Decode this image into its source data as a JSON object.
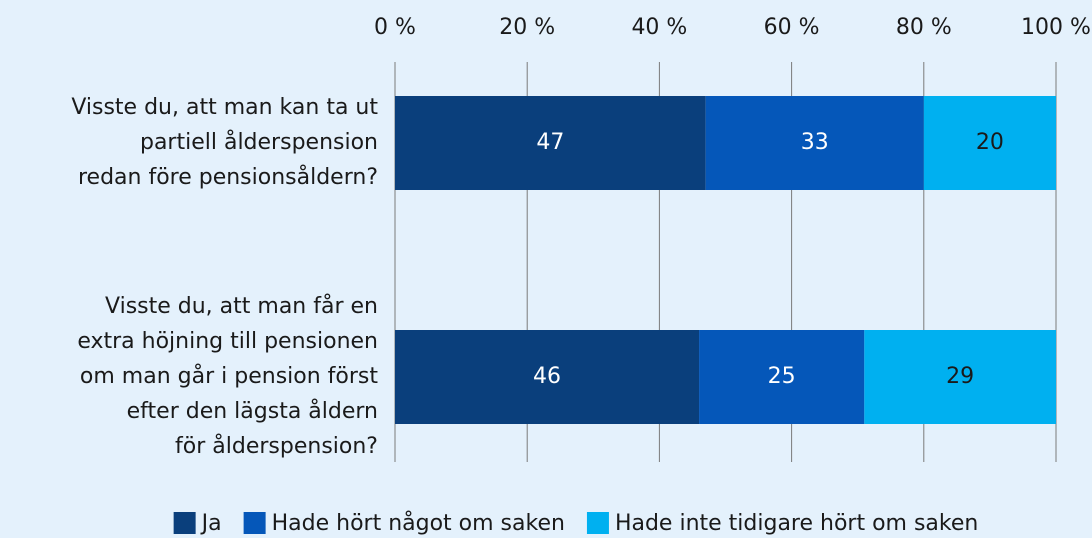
{
  "chart_data": {
    "type": "stacked_bar_horizontal",
    "categories": [
      [
        "Visste du, att man kan ta ut",
        "partiell ålderspension",
        "redan före pensionsåldern?"
      ],
      [
        "Visste du, att man får en",
        "extra höjning till pensionen",
        "om man går i pension först",
        "efter den lägsta åldern",
        "för ålderspension?"
      ]
    ],
    "series": [
      {
        "name": "Ja",
        "color": "#0a3f7c",
        "label_color": "#ffffff",
        "values": [
          47,
          46
        ]
      },
      {
        "name": "Hade hört något om saken",
        "color": "#0557b9",
        "label_color": "#ffffff",
        "values": [
          33,
          25
        ]
      },
      {
        "name": "Hade inte tidigare hört om saken",
        "color": "#00b0f0",
        "label_color": "#1a1a1a",
        "values": [
          20,
          29
        ]
      }
    ],
    "xlim": [
      0,
      100
    ],
    "xticks": [
      {
        "value": 0,
        "label": "0 %"
      },
      {
        "value": 20,
        "label": "20 %"
      },
      {
        "value": 40,
        "label": "40 %"
      },
      {
        "value": 60,
        "label": "60 %"
      },
      {
        "value": 80,
        "label": "80 %"
      },
      {
        "value": 100,
        "label": "100 %"
      }
    ],
    "grid": true,
    "legend": "bottom"
  }
}
